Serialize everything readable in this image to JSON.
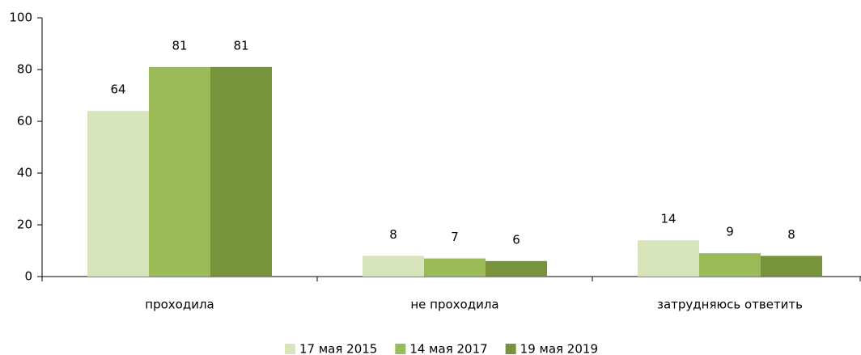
{
  "chart_data": {
    "type": "bar",
    "categories": [
      "проходила",
      "не проходила",
      "затрудняюсь ответить"
    ],
    "series": [
      {
        "name": "17 мая 2015",
        "color": "#d8e4bc",
        "values": [
          64,
          8,
          14
        ]
      },
      {
        "name": "14 мая 2017",
        "color": "#9bbb59",
        "values": [
          81,
          7,
          9
        ]
      },
      {
        "name": "19 мая 2019",
        "color": "#77933c",
        "values": [
          81,
          6,
          8
        ]
      }
    ],
    "ylim": [
      0,
      100
    ],
    "yticks": [
      0,
      20,
      40,
      60,
      80,
      100
    ],
    "grid": false,
    "legend": "bottom"
  }
}
